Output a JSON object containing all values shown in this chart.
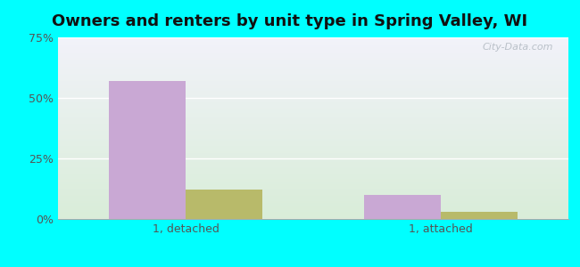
{
  "title": "Owners and renters by unit type in Spring Valley, WI",
  "categories": [
    "1, detached",
    "1, attached"
  ],
  "owner_values": [
    57,
    10
  ],
  "renter_values": [
    12,
    3
  ],
  "owner_color": "#c9a8d4",
  "renter_color": "#b8ba6a",
  "bar_width": 0.3,
  "ylim": [
    0,
    75
  ],
  "yticks": [
    0,
    25,
    50,
    75
  ],
  "ytick_labels": [
    "0%",
    "25%",
    "50%",
    "75%"
  ],
  "background_color": "#00ffff",
  "grid_color": "#ffffff",
  "title_fontsize": 13,
  "tick_fontsize": 9,
  "legend_fontsize": 9,
  "watermark": "City-Data.com"
}
